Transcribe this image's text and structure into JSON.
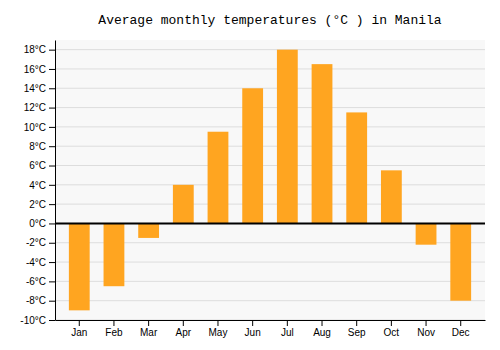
{
  "chart_data": {
    "type": "bar",
    "title": "Average monthly temperatures (°C ) in Manila",
    "categories": [
      "Jan",
      "Feb",
      "Mar",
      "Apr",
      "May",
      "Jun",
      "Jul",
      "Aug",
      "Sep",
      "Oct",
      "Nov",
      "Dec"
    ],
    "values": [
      -9,
      -6.5,
      -1.5,
      4,
      9.5,
      14,
      18,
      16.5,
      11.5,
      5.5,
      -2.2,
      -8
    ],
    "color": "#FFA520",
    "ylim": [
      -10,
      19
    ],
    "yticks": [
      {
        "value": -10,
        "label": "-10°C"
      },
      {
        "value": -8,
        "label": "-8°C"
      },
      {
        "value": -6,
        "label": "-6°C"
      },
      {
        "value": -4,
        "label": "-4°C"
      },
      {
        "value": -2,
        "label": "-2°C"
      },
      {
        "value": 0,
        "label": "0°C"
      },
      {
        "value": 2,
        "label": "2°C"
      },
      {
        "value": 4,
        "label": "4°C"
      },
      {
        "value": 6,
        "label": "6°C"
      },
      {
        "value": 8,
        "label": "8°C"
      },
      {
        "value": 10,
        "label": "10°C"
      },
      {
        "value": 12,
        "label": "12°C"
      },
      {
        "value": 14,
        "label": "14°C"
      },
      {
        "value": 16,
        "label": "16°C"
      },
      {
        "value": 18,
        "label": "18°C"
      }
    ],
    "grid": true
  }
}
